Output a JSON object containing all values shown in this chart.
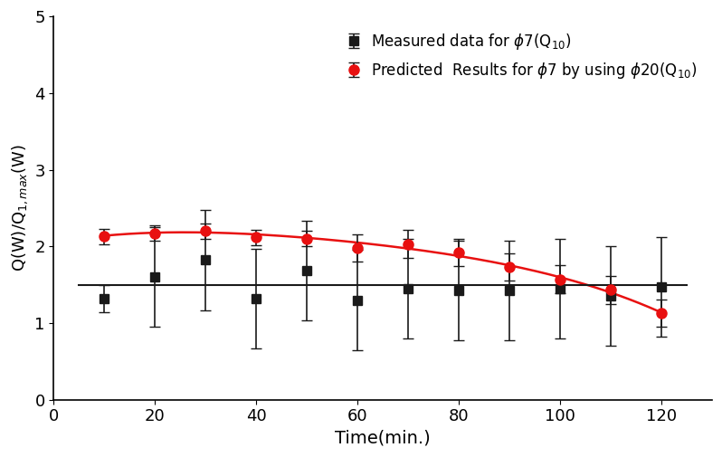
{
  "black_x": [
    10,
    20,
    30,
    40,
    50,
    60,
    70,
    80,
    90,
    100,
    110,
    120
  ],
  "black_y": [
    1.32,
    1.6,
    1.82,
    1.32,
    1.68,
    1.3,
    1.45,
    1.42,
    1.42,
    1.45,
    1.35,
    1.47
  ],
  "black_yerr_lower": [
    0.18,
    0.65,
    0.65,
    0.65,
    0.65,
    0.65,
    0.65,
    0.65,
    0.65,
    0.65,
    0.65,
    0.65
  ],
  "black_yerr_upper": [
    0.18,
    0.65,
    0.65,
    0.65,
    0.65,
    0.65,
    0.65,
    0.65,
    0.65,
    0.65,
    0.65,
    0.65
  ],
  "black_line_y": [
    1.5,
    1.5
  ],
  "black_line_x": [
    5,
    125
  ],
  "red_x": [
    10,
    20,
    30,
    40,
    50,
    60,
    70,
    80,
    90,
    100,
    110,
    120
  ],
  "red_y": [
    2.13,
    2.17,
    2.2,
    2.12,
    2.1,
    1.98,
    2.03,
    1.92,
    1.73,
    1.57,
    1.43,
    1.13
  ],
  "red_yerr_lower": [
    0.1,
    0.1,
    0.1,
    0.1,
    0.1,
    0.18,
    0.18,
    0.18,
    0.18,
    0.18,
    0.18,
    0.18
  ],
  "red_yerr_upper": [
    0.1,
    0.1,
    0.1,
    0.1,
    0.1,
    0.18,
    0.18,
    0.18,
    0.18,
    0.18,
    0.18,
    0.18
  ],
  "red_curve_x": [
    10,
    15,
    20,
    25,
    30,
    35,
    40,
    45,
    50,
    55,
    60,
    65,
    70,
    75,
    80,
    85,
    90,
    95,
    100,
    105,
    110,
    115,
    120
  ],
  "red_curve_y": [
    2.13,
    2.16,
    2.18,
    2.2,
    2.2,
    2.18,
    2.14,
    2.13,
    2.1,
    2.06,
    2.0,
    2.02,
    2.01,
    1.97,
    1.9,
    1.82,
    1.73,
    1.65,
    1.57,
    1.5,
    1.43,
    1.28,
    1.13
  ],
  "xlabel": "Time(min.)",
  "ylabel": "Q(W)/Q$_{1,max}$(W)",
  "xlim": [
    0,
    130
  ],
  "ylim": [
    0,
    5
  ],
  "xticks": [
    0,
    20,
    40,
    60,
    80,
    100,
    120
  ],
  "yticks": [
    0,
    1,
    2,
    3,
    4,
    5
  ],
  "legend_label_black": "Measured data for $\\phi$7(Q$_{10}$)",
  "legend_label_red": "Predicted  Results for $\\phi$7 by using $\\phi$20(Q$_{10}$)",
  "black_color": "#1a1a1a",
  "red_color": "#e81010",
  "background_color": "#ffffff"
}
